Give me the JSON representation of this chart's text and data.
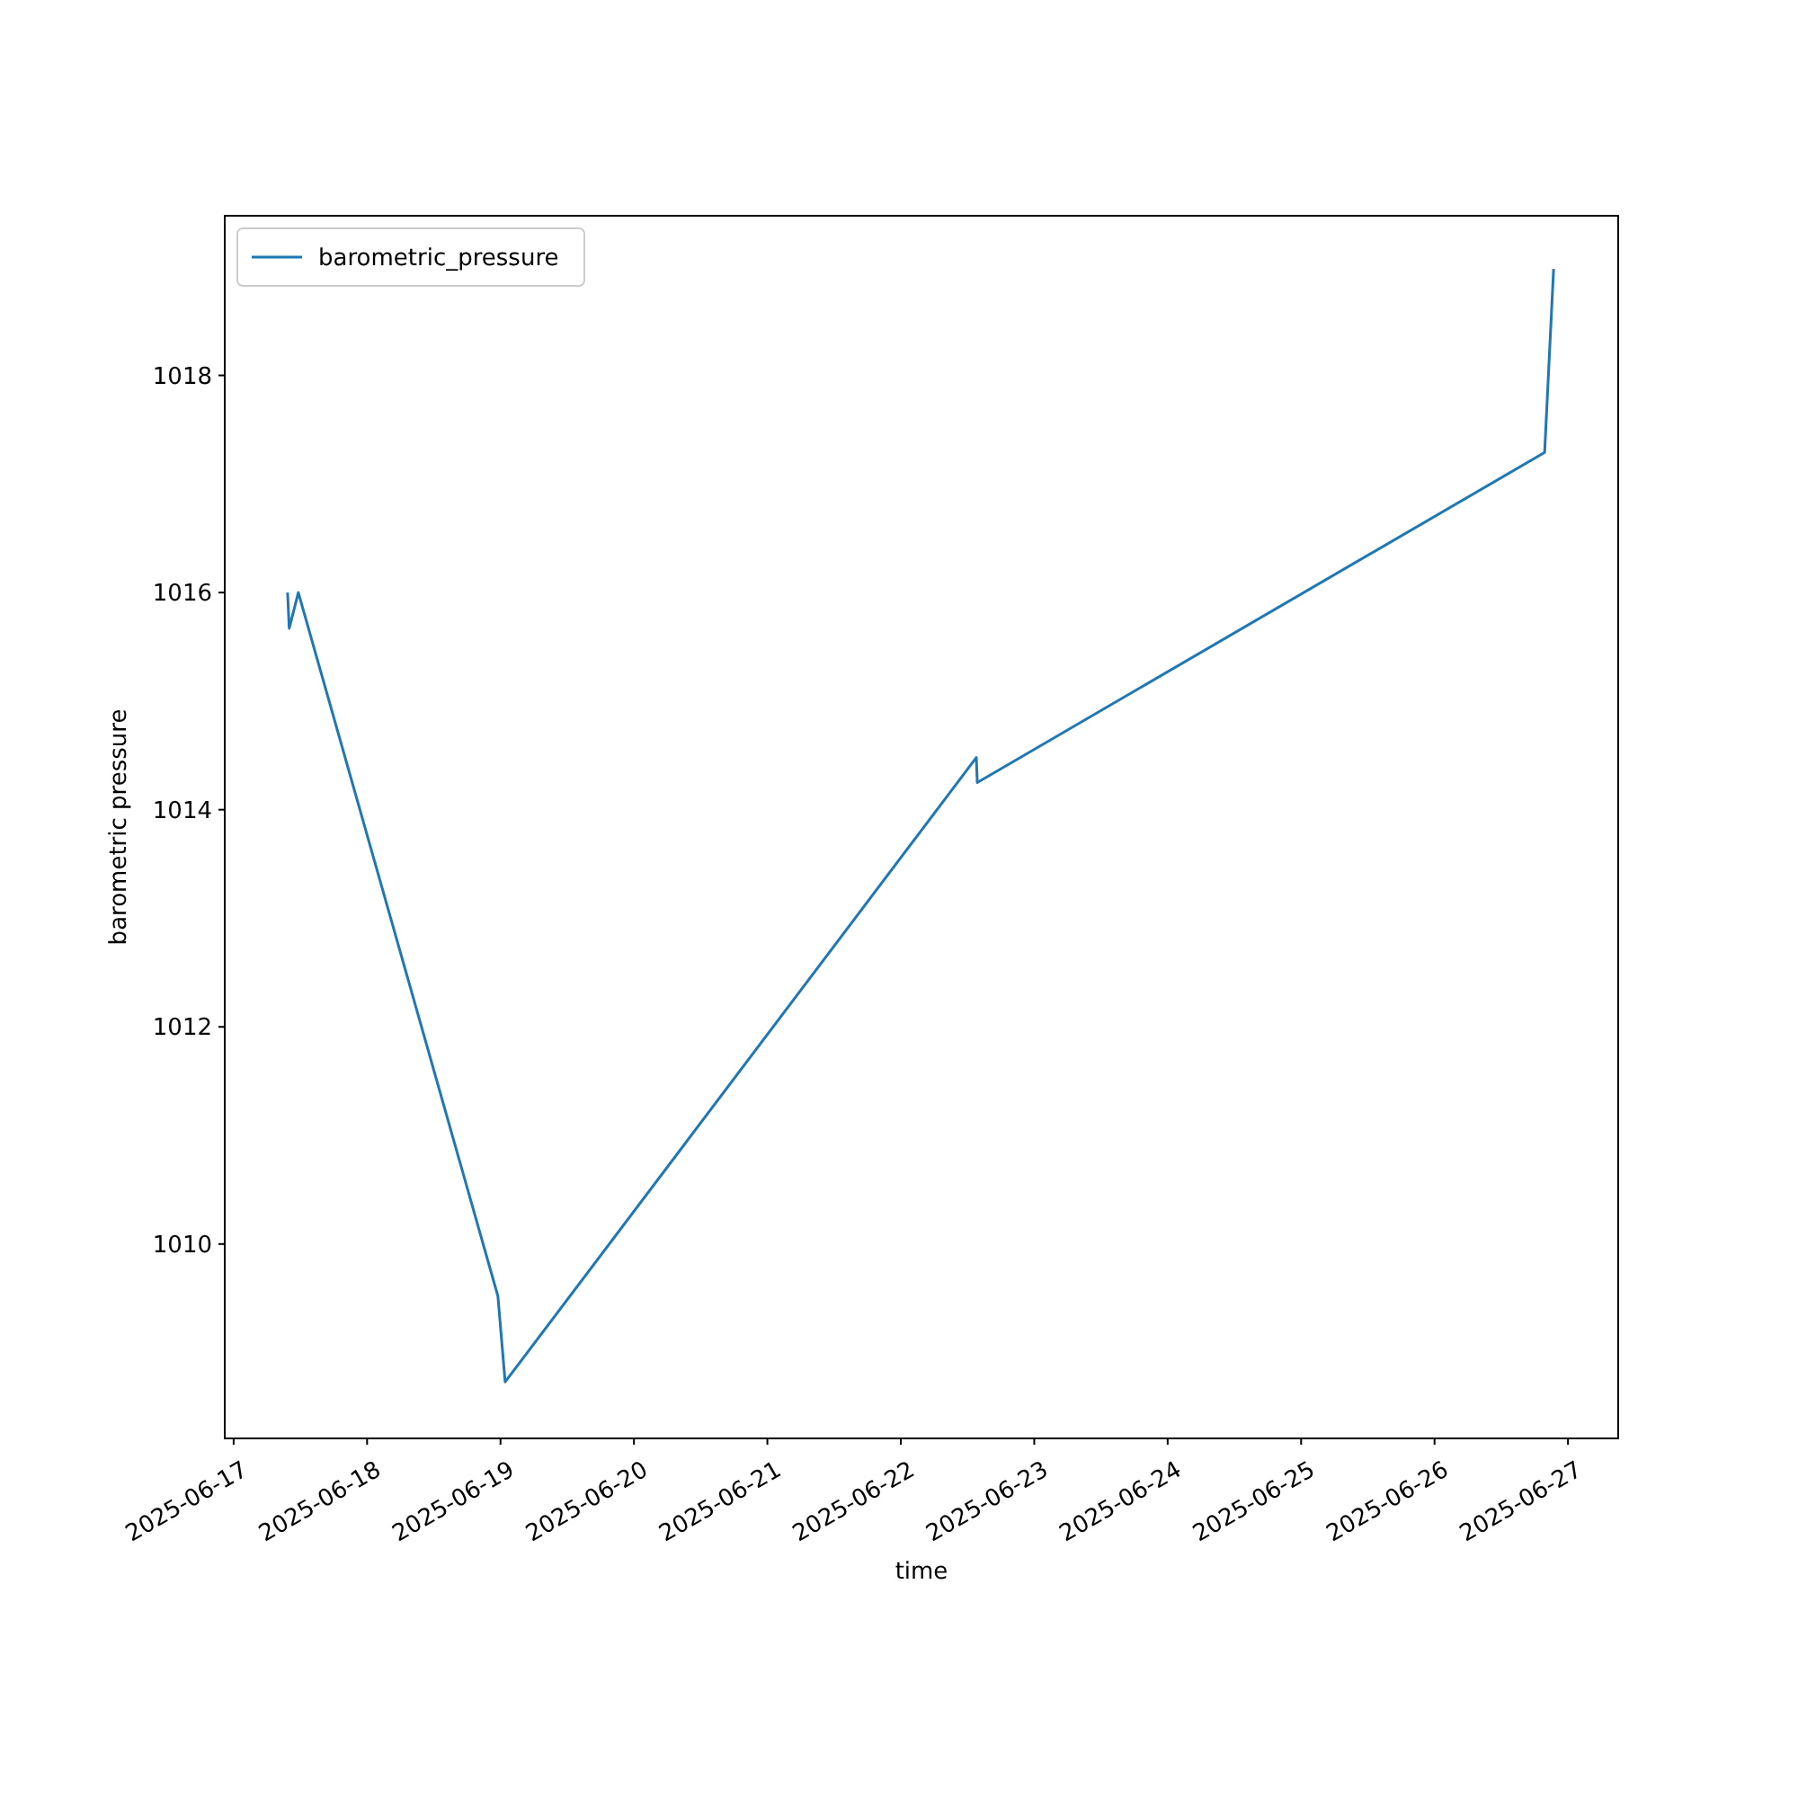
{
  "chart_data": {
    "type": "line",
    "xlabel": "time",
    "ylabel": "barometric pressure",
    "x": [
      "2025-06-17T09:42",
      "2025-06-17T10:00",
      "2025-06-17T11:38",
      "2025-06-18T23:32",
      "2025-06-19T00:50",
      "2025-06-22T13:35",
      "2025-06-22T13:45",
      "2025-06-26T19:48",
      "2025-06-26T21:25"
    ],
    "series": [
      {
        "name": "barometric_pressure",
        "color": "#1f77b4",
        "values": [
          1016.0,
          1015.67,
          1016.0,
          1009.52,
          1008.73,
          1014.48,
          1014.25,
          1017.29,
          1018.98
        ]
      }
    ],
    "xlim": [
      "2025-06-16T22:24",
      "2025-06-27T09:02"
    ],
    "xticks": [
      "2025-06-17",
      "2025-06-18",
      "2025-06-19",
      "2025-06-20",
      "2025-06-21",
      "2025-06-22",
      "2025-06-23",
      "2025-06-24",
      "2025-06-25",
      "2025-06-26",
      "2025-06-27"
    ],
    "ylim": [
      1008.21,
      1019.47
    ],
    "yticks": [
      1010,
      1012,
      1014,
      1016,
      1018
    ],
    "legend": "top left",
    "grid": false,
    "line_style": "solid",
    "marker": "none"
  }
}
